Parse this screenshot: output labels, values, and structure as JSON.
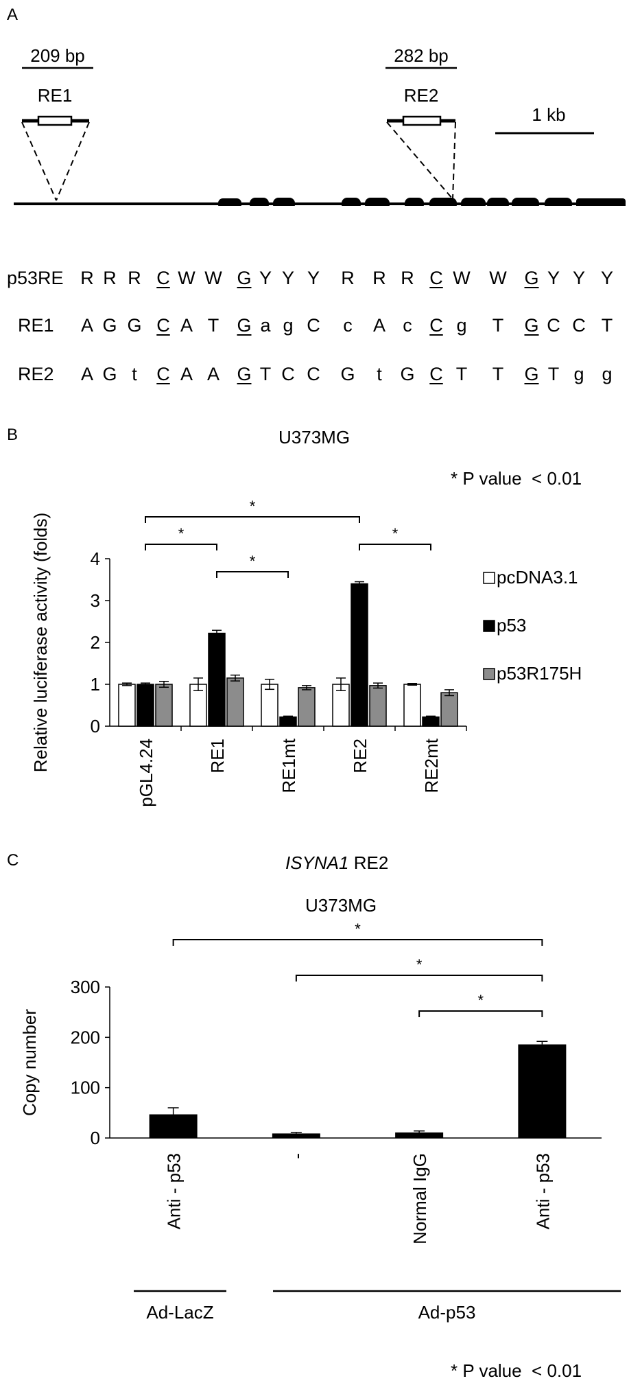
{
  "panel_a": {
    "letter": "A",
    "re1_size": "209 bp",
    "re1_name": "RE1",
    "re2_size": "282 bp",
    "re2_name": "RE2",
    "scale_label": "1 kb",
    "sequences": [
      {
        "name": "p53RE",
        "letters": [
          "R",
          "R",
          "R",
          "C",
          "W",
          "W",
          "G",
          "Y",
          "Y",
          "Y",
          "R",
          "R",
          "R",
          "C",
          "W",
          "W",
          "G",
          "Y",
          "Y",
          "Y"
        ]
      },
      {
        "name": "RE1",
        "letters": [
          "A",
          "G",
          "G",
          "C",
          "A",
          "T",
          "G",
          "a",
          "g",
          "C",
          "c",
          "A",
          "c",
          "C",
          "g",
          "T",
          "G",
          "C",
          "C",
          "T"
        ]
      },
      {
        "name": "RE2",
        "letters": [
          "A",
          "G",
          "t",
          "C",
          "A",
          "A",
          "G",
          "T",
          "C",
          "C",
          "G",
          "t",
          "G",
          "C",
          "T",
          "T",
          "G",
          "T",
          "g",
          "g"
        ]
      }
    ]
  },
  "panel_b": {
    "letter": "B",
    "title": "U373MG",
    "pvalue_note": "* P value  < 0.01",
    "significance_mark": "*"
  },
  "panel_c": {
    "letter": "C",
    "title_gene": "ISYNA1",
    "title_suffix": " RE2",
    "subtitle": "U373MG",
    "significance_mark": "*",
    "group_labels": [
      "Ad-LacZ",
      "Ad-p53"
    ],
    "pvalue_note": "* P value  < 0.01"
  },
  "chart_data": [
    {
      "type": "bar",
      "title": "U373MG",
      "ylabel": "Relative luciferase activity (folds)",
      "ylim": [
        0,
        4
      ],
      "yticks": [
        0,
        1,
        2,
        3,
        4
      ],
      "categories": [
        "pGL4.24",
        "RE1",
        "RE1mt",
        "RE2",
        "RE2mt"
      ],
      "series": [
        {
          "name": "pcDNA3.1",
          "color": "#ffffff",
          "values": [
            1.0,
            1.0,
            1.0,
            1.0,
            1.0
          ],
          "errors": [
            0.03,
            0.15,
            0.12,
            0.15,
            0.02
          ]
        },
        {
          "name": "p53",
          "color": "#000000",
          "values": [
            1.0,
            2.22,
            0.22,
            3.4,
            0.22
          ],
          "errors": [
            0.03,
            0.07,
            0.02,
            0.05,
            0.02
          ]
        },
        {
          "name": "p53R175H",
          "color": "#8c8c8c",
          "values": [
            1.0,
            1.15,
            0.92,
            0.97,
            0.8
          ],
          "errors": [
            0.07,
            0.07,
            0.05,
            0.06,
            0.07
          ]
        }
      ],
      "legend": "right",
      "significance": [
        "*",
        "*",
        "*",
        "*"
      ]
    },
    {
      "type": "bar",
      "title": "ISYNA1 RE2",
      "subtitle": "U373MG",
      "ylabel": "Copy number",
      "ylim": [
        0,
        300
      ],
      "yticks": [
        0,
        100,
        200,
        300
      ],
      "categories": [
        "Anti - p53",
        "-",
        "Normal  IgG",
        "Anti - p53"
      ],
      "values": [
        47,
        9,
        11,
        186
      ],
      "errors": [
        13,
        2,
        3,
        6
      ],
      "groups": [
        {
          "label": "Ad-LacZ",
          "categories": [
            0
          ]
        },
        {
          "label": "Ad-p53",
          "categories": [
            1,
            2,
            3
          ]
        }
      ],
      "significance": [
        "*",
        "*",
        "*"
      ]
    }
  ]
}
